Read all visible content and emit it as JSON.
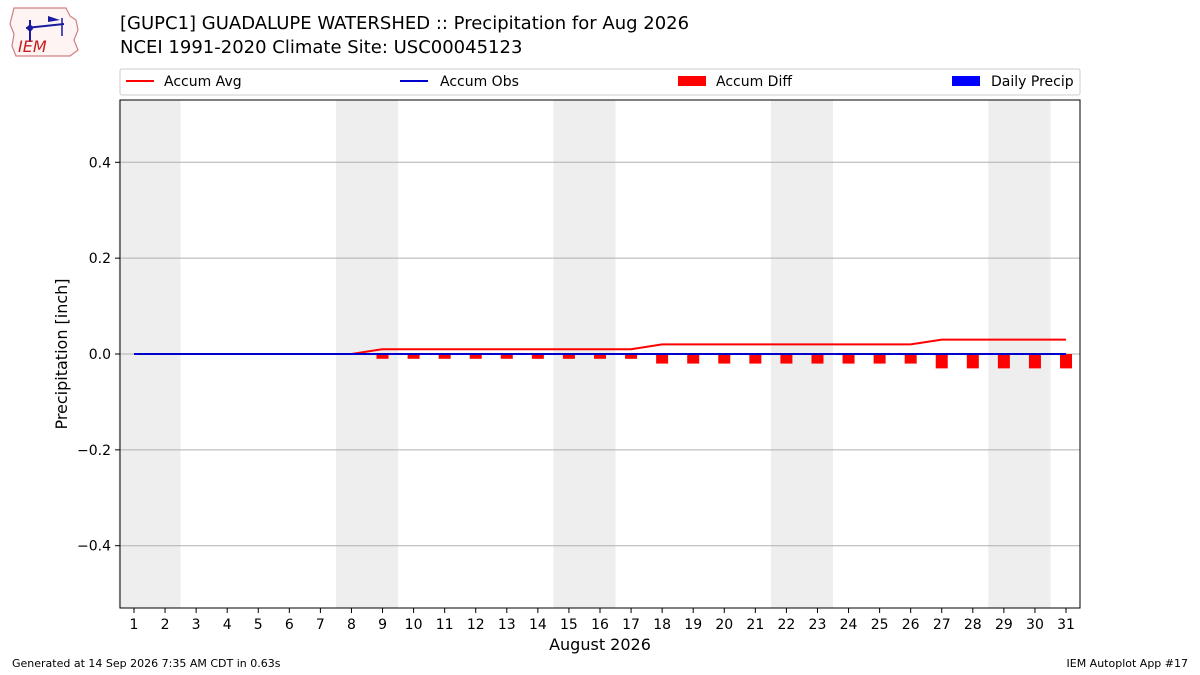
{
  "header": {
    "title_line1": "[GUPC1] GUADALUPE WATERSHED :: Precipitation for Aug 2026",
    "title_line2": "NCEI 1991-2020 Climate Site: USC00045123"
  },
  "logo": {
    "text": "IEM",
    "icon": "iem-logo"
  },
  "footer": {
    "left": "Generated at 14 Sep 2026 7:35 AM CDT in 0.63s",
    "right": "IEM Autoplot App #17"
  },
  "chart_data": {
    "type": "line",
    "xlabel": "August 2026",
    "ylabel": "Precipitation [inch]",
    "ylim": [
      -0.53,
      0.53
    ],
    "yticks": [
      -0.4,
      -0.2,
      0.0,
      0.2,
      0.4
    ],
    "ytick_labels": [
      "−0.4",
      "−0.2",
      "0.0",
      "0.2",
      "0.4"
    ],
    "x": [
      1,
      2,
      3,
      4,
      5,
      6,
      7,
      8,
      9,
      10,
      11,
      12,
      13,
      14,
      15,
      16,
      17,
      18,
      19,
      20,
      21,
      22,
      23,
      24,
      25,
      26,
      27,
      28,
      29,
      30,
      31
    ],
    "weekend_spans": [
      [
        1,
        2
      ],
      [
        8,
        9
      ],
      [
        15,
        16
      ],
      [
        22,
        23
      ],
      [
        29,
        30
      ]
    ],
    "grid": "horizontal",
    "legend_placement": "top",
    "series": [
      {
        "name": "Accum Avg",
        "kind": "line",
        "color": "#ff0000",
        "values": [
          0,
          0,
          0,
          0,
          0,
          0,
          0,
          0,
          0.01,
          0.01,
          0.01,
          0.01,
          0.01,
          0.01,
          0.01,
          0.01,
          0.01,
          0.02,
          0.02,
          0.02,
          0.02,
          0.02,
          0.02,
          0.02,
          0.02,
          0.02,
          0.03,
          0.03,
          0.03,
          0.03,
          0.03
        ]
      },
      {
        "name": "Accum Obs",
        "kind": "line",
        "color": "#0000cc",
        "values": [
          0,
          0,
          0,
          0,
          0,
          0,
          0,
          0,
          0,
          0,
          0,
          0,
          0,
          0,
          0,
          0,
          0,
          0,
          0,
          0,
          0,
          0,
          0,
          0,
          0,
          0,
          0,
          0,
          0,
          0,
          0
        ]
      },
      {
        "name": "Accum Diff",
        "kind": "bar",
        "color": "#ff0000",
        "values": [
          0,
          0,
          0,
          0,
          0,
          0,
          0,
          0,
          -0.01,
          -0.01,
          -0.01,
          -0.01,
          -0.01,
          -0.01,
          -0.01,
          -0.01,
          -0.01,
          -0.02,
          -0.02,
          -0.02,
          -0.02,
          -0.02,
          -0.02,
          -0.02,
          -0.02,
          -0.02,
          -0.03,
          -0.03,
          -0.03,
          -0.03,
          -0.03
        ]
      },
      {
        "name": "Daily Precip",
        "kind": "bar",
        "color": "#0000ff",
        "values": [
          0,
          0,
          0,
          0,
          0,
          0,
          0,
          0,
          0,
          0,
          0,
          0,
          0,
          0,
          0,
          0,
          0,
          0,
          0,
          0,
          0,
          0,
          0,
          0,
          0,
          0,
          0,
          0,
          0,
          0,
          0
        ]
      }
    ]
  }
}
